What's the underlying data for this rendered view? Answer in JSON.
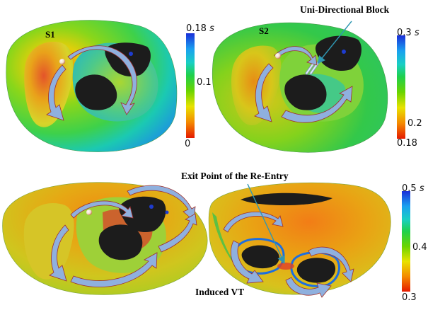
{
  "panels": {
    "s1": {
      "label": "S1"
    },
    "s2": {
      "label": "S2"
    }
  },
  "annotations": {
    "uni_block": "Uni-Directional Block",
    "exit_point": "Exit Point of the Re-Entry",
    "induced_vt": "Induced VT"
  },
  "colorbars": {
    "cb1": {
      "max": "0.18",
      "mid": "0.1",
      "min": "0",
      "unit": "s"
    },
    "cb2": {
      "max": "0.3",
      "mid": "0.2",
      "min": "0.18",
      "unit": "s"
    },
    "cb3": {
      "max": "0.5",
      "mid": "0.4",
      "min": "0.3",
      "unit": "s"
    }
  },
  "colors": {
    "scar": "#1c1c1c",
    "arrow": "#8fb0de",
    "arrow_edge": "#a0302c",
    "pointer": "#2f97b2"
  }
}
